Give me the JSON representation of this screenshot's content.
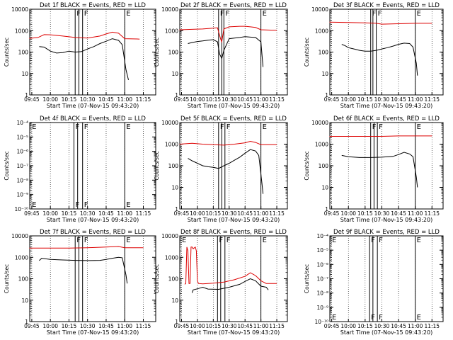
{
  "figure": {
    "xlabel": "Start Time (07-Nov-15 09:43:20)",
    "ylabel": "Counts/sec",
    "x_ticks": [
      "09:45",
      "10:00",
      "10:15",
      "10:30",
      "10:45",
      "11:00",
      "11:15"
    ],
    "colors": {
      "events": "#000000",
      "lld": "#dd0000",
      "axes": "#000000",
      "background": "#ffffff"
    }
  },
  "chart_data": [
    {
      "type": "line",
      "title": "Det 1f BLACK = Events, RED = LLD",
      "xlabel": "Start Time (07-Nov-15 09:43:20)",
      "ylabel": "Counts/sec",
      "x_ticks": [
        "09:45",
        "10:00",
        "10:15",
        "10:30",
        "10:45",
        "11:00",
        "11:15"
      ],
      "y_scale": "log",
      "ylim": [
        1,
        10000
      ],
      "y_ticks": [
        "1",
        "10",
        "100",
        "1000",
        "10000"
      ],
      "markers": [
        {
          "label": "F",
          "x": "10:20"
        },
        {
          "label": "F",
          "x": "10:26"
        },
        {
          "label": "E",
          "x": "11:00"
        }
      ],
      "vertical_lines": [
        "10:20",
        "10:23",
        "10:26",
        "11:00"
      ],
      "series": [
        {
          "name": "LLD",
          "color": "#dd0000",
          "x": [
            "09:43",
            "09:50",
            "09:55",
            "10:00",
            "10:10",
            "10:20",
            "10:30",
            "10:40",
            "10:45",
            "10:50",
            "10:55",
            "11:00",
            "11:10",
            "11:12"
          ],
          "y": [
            430,
            480,
            650,
            640,
            560,
            480,
            450,
            560,
            700,
            850,
            760,
            420,
            410,
            400
          ]
        },
        {
          "name": "Events",
          "color": "#000000",
          "x": [
            "09:51",
            "09:55",
            "10:00",
            "10:05",
            "10:10",
            "10:15",
            "10:20",
            "10:25",
            "10:30",
            "10:35",
            "10:40",
            "10:45",
            "10:50",
            "10:55",
            "10:58",
            "11:01",
            "11:03"
          ],
          "y": [
            180,
            170,
            110,
            90,
            95,
            110,
            100,
            105,
            140,
            180,
            250,
            320,
            420,
            350,
            220,
            15,
            5
          ]
        }
      ]
    },
    {
      "type": "line",
      "title": "Det 2f BLACK = Events, RED = LLD",
      "xlabel": "Start Time (07-Nov-15 09:43:20)",
      "ylabel": "Counts/sec",
      "x_ticks": [
        "09:45",
        "10:00",
        "10:15",
        "10:30",
        "10:45",
        "11:00",
        "11:15"
      ],
      "y_scale": "log",
      "ylim": [
        1,
        10000
      ],
      "y_ticks": [
        "1",
        "10",
        "100",
        "1000",
        "10000"
      ],
      "markers": [
        {
          "label": "F",
          "x": "10:20"
        },
        {
          "label": "F",
          "x": "10:25"
        },
        {
          "label": "E",
          "x": "11:00"
        }
      ],
      "vertical_lines": [
        "10:20",
        "10:23",
        "10:25",
        "11:00"
      ],
      "series": [
        {
          "name": "LLD",
          "color": "#dd0000",
          "x": [
            "09:43",
            "09:55",
            "10:05",
            "10:15",
            "10:19",
            "10:22",
            "10:23",
            "10:25",
            "10:30",
            "10:40",
            "10:45",
            "10:50",
            "10:55",
            "11:00",
            "11:10",
            "11:15"
          ],
          "y": [
            1100,
            1150,
            1200,
            1300,
            1350,
            400,
            300,
            1200,
            1500,
            1600,
            1600,
            1500,
            1400,
            1100,
            1050,
            1050
          ]
        },
        {
          "name": "Events",
          "color": "#000000",
          "x": [
            "09:51",
            "09:55",
            "10:00",
            "10:05",
            "10:10",
            "10:15",
            "10:19",
            "10:21",
            "10:23",
            "10:25",
            "10:30",
            "10:35",
            "10:40",
            "10:45",
            "10:50",
            "10:55",
            "11:00",
            "11:02"
          ],
          "y": [
            250,
            280,
            310,
            330,
            360,
            380,
            300,
            80,
            50,
            120,
            420,
            450,
            480,
            520,
            500,
            480,
            300,
            20
          ]
        }
      ]
    },
    {
      "type": "line",
      "title": "Det 3f BLACK = Events, RED = LLD",
      "xlabel": "Start Time (07-Nov-15 09:43:20)",
      "ylabel": "Counts/sec",
      "x_ticks": [
        "09:45",
        "10:00",
        "10:15",
        "10:30",
        "10:45",
        "11:00",
        "11:15"
      ],
      "y_scale": "log",
      "ylim": [
        1,
        10000
      ],
      "y_ticks": [
        "1",
        "10",
        "100",
        "1000",
        "10000"
      ],
      "markers": [
        {
          "label": "F",
          "x": "10:20"
        },
        {
          "label": "F",
          "x": "10:25"
        },
        {
          "label": "E",
          "x": "11:00"
        }
      ],
      "vertical_lines": [
        "10:20",
        "10:22",
        "10:25",
        "11:00"
      ],
      "series": [
        {
          "name": "LLD",
          "color": "#dd0000",
          "x": [
            "09:43",
            "10:00",
            "10:15",
            "10:25",
            "10:30",
            "10:45",
            "11:00",
            "11:15"
          ],
          "y": [
            2500,
            2400,
            2300,
            2200,
            2000,
            2100,
            2200,
            2200
          ]
        },
        {
          "name": "Events",
          "color": "#000000",
          "x": [
            "09:54",
            "09:57",
            "10:00",
            "10:05",
            "10:10",
            "10:15",
            "10:20",
            "10:25",
            "10:30",
            "10:35",
            "10:40",
            "10:45",
            "10:50",
            "10:55",
            "10:58",
            "11:01",
            "11:02"
          ],
          "y": [
            230,
            200,
            160,
            140,
            120,
            110,
            110,
            120,
            140,
            160,
            190,
            230,
            260,
            250,
            170,
            30,
            8
          ]
        }
      ]
    },
    {
      "type": "line",
      "title": "Det 4f BLACK = Events, RED = LLD",
      "xlabel": "Start Time (07-Nov-15 09:43:20)",
      "ylabel": "Counts/sec",
      "x_ticks": [
        "09:45",
        "10:00",
        "10:15",
        "10:30",
        "10:45",
        "11:00",
        "11:15"
      ],
      "y_scale": "log",
      "ylim": [
        1e-10,
        0.0001
      ],
      "y_ticks": [
        "10⁻¹⁰",
        "10⁻⁹",
        "10⁻⁸",
        "10⁻⁷",
        "10⁻⁶",
        "10⁻⁵",
        "10⁻⁴"
      ],
      "markers": [
        {
          "label": "E",
          "x": "09:44"
        },
        {
          "label": "F",
          "x": "10:19"
        },
        {
          "label": "F",
          "x": "10:26"
        },
        {
          "label": "E",
          "x": "11:00"
        }
      ],
      "vertical_lines": [
        "10:19",
        "10:22",
        "10:26",
        "11:00"
      ],
      "series": []
    },
    {
      "type": "line",
      "title": "Det 5f BLACK = Events, RED = LLD",
      "xlabel": "Start Time (07-Nov-15 09:43:20)",
      "ylabel": "Counts/sec",
      "x_ticks": [
        "09:45",
        "10:00",
        "10:15",
        "10:30",
        "10:45",
        "11:00",
        "11:15"
      ],
      "y_scale": "log",
      "ylim": [
        1,
        10000
      ],
      "y_ticks": [
        "1",
        "10",
        "100",
        "1000",
        "10000"
      ],
      "markers": [
        {
          "label": "F",
          "x": "10:20"
        },
        {
          "label": "F",
          "x": "10:26"
        },
        {
          "label": "E",
          "x": "11:00"
        }
      ],
      "vertical_lines": [
        "10:20",
        "10:23",
        "10:26",
        "11:00"
      ],
      "series": [
        {
          "name": "LLD",
          "color": "#dd0000",
          "x": [
            "09:43",
            "09:55",
            "10:05",
            "10:15",
            "10:25",
            "10:35",
            "10:45",
            "10:50",
            "10:55",
            "11:00",
            "11:15"
          ],
          "y": [
            1000,
            1100,
            1000,
            950,
            900,
            1000,
            1150,
            1350,
            1200,
            950,
            950
          ]
        },
        {
          "name": "Events",
          "color": "#000000",
          "x": [
            "09:51",
            "09:55",
            "10:00",
            "10:05",
            "10:10",
            "10:15",
            "10:20",
            "10:25",
            "10:30",
            "10:35",
            "10:40",
            "10:45",
            "10:50",
            "10:55",
            "10:58",
            "11:01",
            "11:02"
          ],
          "y": [
            220,
            170,
            130,
            100,
            90,
            85,
            75,
            100,
            130,
            180,
            250,
            380,
            560,
            480,
            300,
            15,
            5
          ]
        }
      ]
    },
    {
      "type": "line",
      "title": "Det 6f BLACK = Events, RED = LLD",
      "xlabel": "Start Time (07-Nov-15 09:43:20)",
      "ylabel": "Counts/sec",
      "x_ticks": [
        "09:45",
        "10:00",
        "10:15",
        "10:30",
        "10:45",
        "11:00",
        "11:15"
      ],
      "y_scale": "log",
      "ylim": [
        1,
        10000
      ],
      "y_ticks": [
        "1",
        "10",
        "100",
        "1000",
        "10000"
      ],
      "markers": [
        {
          "label": "F",
          "x": "10:20"
        },
        {
          "label": "F",
          "x": "10:26"
        },
        {
          "label": "E",
          "x": "11:00"
        }
      ],
      "vertical_lines": [
        "10:20",
        "10:23",
        "10:26",
        "11:00"
      ],
      "series": [
        {
          "name": "LLD",
          "color": "#dd0000",
          "x": [
            "09:43",
            "10:00",
            "10:15",
            "10:30",
            "10:45",
            "11:00",
            "11:15"
          ],
          "y": [
            2300,
            2300,
            2300,
            2300,
            2400,
            2400,
            2400
          ]
        },
        {
          "name": "Events",
          "color": "#000000",
          "x": [
            "09:54",
            "10:00",
            "10:10",
            "10:20",
            "10:30",
            "10:40",
            "10:45",
            "10:50",
            "10:55",
            "10:58",
            "11:01",
            "11:02"
          ],
          "y": [
            300,
            260,
            240,
            240,
            250,
            270,
            330,
            420,
            350,
            260,
            30,
            10
          ]
        }
      ]
    },
    {
      "type": "line",
      "title": "Det 7f BLACK = Events, RED = LLD",
      "xlabel": "Start Time (07-Nov-15 09:43:20)",
      "ylabel": "Counts/sec",
      "x_ticks": [
        "09:45",
        "10:00",
        "10:15",
        "10:30",
        "10:45",
        "11:00",
        "11:15"
      ],
      "y_scale": "log",
      "ylim": [
        1,
        10000
      ],
      "y_ticks": [
        "1",
        "10",
        "100",
        "1000",
        "10000"
      ],
      "markers": [
        {
          "label": "F",
          "x": "10:20"
        },
        {
          "label": "F",
          "x": "10:26"
        },
        {
          "label": "E",
          "x": "11:00"
        }
      ],
      "vertical_lines": [
        "10:20",
        "10:23",
        "10:26",
        "11:00"
      ],
      "series": [
        {
          "name": "LLD",
          "color": "#dd0000",
          "x": [
            "09:43",
            "10:00",
            "10:15",
            "10:30",
            "10:45",
            "10:55",
            "11:00",
            "11:15"
          ],
          "y": [
            2700,
            2700,
            2700,
            2800,
            3000,
            3200,
            2800,
            2800
          ]
        },
        {
          "name": "Events",
          "color": "#000000",
          "x": [
            "09:51",
            "09:53",
            "10:00",
            "10:10",
            "10:20",
            "10:30",
            "10:40",
            "10:45",
            "10:50",
            "10:55",
            "10:58",
            "11:01",
            "11:02"
          ],
          "y": [
            700,
            900,
            800,
            750,
            720,
            700,
            720,
            800,
            900,
            1000,
            950,
            150,
            60
          ]
        }
      ]
    },
    {
      "type": "line",
      "title": "Det 8f BLACK = Events, RED = LLD",
      "xlabel": "Start Time (07-Nov-15 09:43:20)",
      "ylabel": "Counts/sec",
      "x_ticks": [
        "09:45",
        "10:00",
        "10:15",
        "10:30",
        "10:45",
        "11:00",
        "11:15"
      ],
      "y_scale": "log",
      "ylim": [
        1,
        10000
      ],
      "y_ticks": [
        "1",
        "10",
        "100",
        "1000",
        "10000"
      ],
      "markers": [
        {
          "label": "E",
          "x": "09:44"
        },
        {
          "label": "F",
          "x": "10:19"
        },
        {
          "label": "F",
          "x": "10:26"
        },
        {
          "label": "E",
          "x": "11:00"
        }
      ],
      "vertical_lines": [
        "10:19",
        "10:22",
        "10:26",
        "11:00"
      ],
      "series": [
        {
          "name": "LLD",
          "color": "#dd0000",
          "x": [
            "09:48",
            "09:49",
            "09:50",
            "09:51",
            "09:52",
            "09:53",
            "09:54",
            "09:55",
            "09:56",
            "09:58",
            "09:59",
            "10:00",
            "10:01",
            "10:05",
            "10:15",
            "10:25",
            "10:35",
            "10:45",
            "10:50",
            "10:55",
            "11:00",
            "11:05",
            "11:15"
          ],
          "y": [
            55,
            60,
            3000,
            2000,
            60,
            60,
            3000,
            3000,
            2500,
            3000,
            2000,
            80,
            60,
            58,
            62,
            70,
            90,
            130,
            190,
            140,
            80,
            60,
            60
          ]
        },
        {
          "name": "Events",
          "color": "#000000",
          "x": [
            "09:55",
            "09:56",
            "10:01",
            "10:05",
            "10:10",
            "10:20",
            "10:30",
            "10:40",
            "10:45",
            "10:50",
            "10:55",
            "11:00",
            "11:05",
            "11:07"
          ],
          "y": [
            22,
            30,
            35,
            40,
            33,
            32,
            40,
            55,
            75,
            100,
            80,
            45,
            40,
            30
          ]
        }
      ]
    },
    {
      "type": "line",
      "title": "Det 9f BLACK = Events, RED = LLD",
      "xlabel": "Start Time (07-Nov-15 09:43:20)",
      "ylabel": "Counts/sec",
      "x_ticks": [
        "09:45",
        "10:00",
        "10:15",
        "10:30",
        "10:45",
        "11:00",
        "11:15"
      ],
      "y_scale": "log",
      "ylim": [
        1e-10,
        0.0001
      ],
      "y_ticks": [
        "10⁻¹⁰",
        "10⁻⁹",
        "10⁻⁸",
        "10⁻⁷",
        "10⁻⁶",
        "10⁻⁵",
        "10⁻⁴"
      ],
      "markers": [
        {
          "label": "E",
          "x": "09:44"
        },
        {
          "label": "F",
          "x": "10:19"
        },
        {
          "label": "F",
          "x": "10:26"
        },
        {
          "label": "E",
          "x": "11:00"
        }
      ],
      "vertical_lines": [
        "10:19",
        "10:22",
        "10:26",
        "11:00"
      ],
      "series": []
    }
  ]
}
